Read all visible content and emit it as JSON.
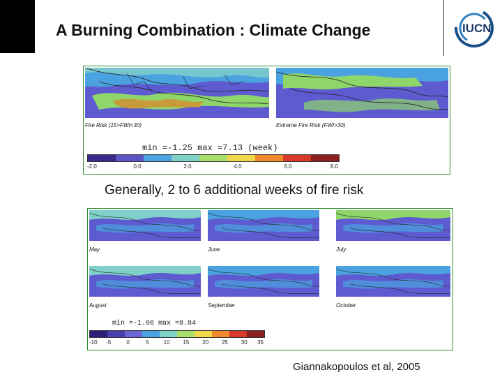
{
  "slide": {
    "title": "A Burning Combination : Climate Change",
    "logo_text": "IUCN",
    "caption": "Generally, 2 to 6 additional weeks of fire risk",
    "citation": "Giannakopoulos et al, 2005"
  },
  "figure_top": {
    "panels": [
      {
        "label": "Fire Risk (15>FWI<30)"
      },
      {
        "label": "Extreme Fire Risk (FWI>30)"
      }
    ],
    "minmax": "min =-1.25  max =7.13  (week)",
    "colorbar_colors": [
      "#3b2a8a",
      "#5b55c8",
      "#4aa3e0",
      "#7fd0c8",
      "#a8e06a",
      "#f0d84a",
      "#f08a2a",
      "#d83a2a",
      "#8a1f1f"
    ],
    "ticks": [
      "-2.0",
      "0.0",
      "2.0",
      "4.0",
      "6.0",
      "8.0"
    ]
  },
  "figure_bottom": {
    "panels": [
      {
        "label": "May"
      },
      {
        "label": "June"
      },
      {
        "label": "July"
      },
      {
        "label": "August"
      },
      {
        "label": "September"
      },
      {
        "label": "October"
      }
    ],
    "minmax": "min =-1.06  max =8.84",
    "colorbar_colors": [
      "#2e1f7a",
      "#4a3fb0",
      "#6a66d8",
      "#4aa3e0",
      "#7fd0c8",
      "#a8e06a",
      "#f0d84a",
      "#f08a2a",
      "#d83a2a",
      "#8a1f1f"
    ],
    "ticks": [
      "-10",
      "-5",
      "0",
      "5",
      "10",
      "15",
      "20",
      "25",
      "30",
      "35"
    ]
  }
}
